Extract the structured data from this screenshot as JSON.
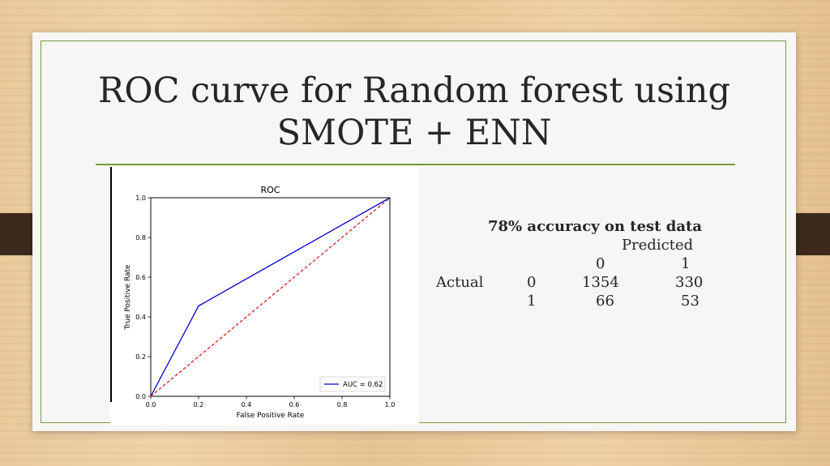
{
  "slide": {
    "title_line1": "ROC curve for Random forest using",
    "title_line2": "SMOTE + ENN"
  },
  "stats": {
    "accuracy_text": "78% accuracy on test data",
    "predicted_label": "Predicted",
    "actual_label": "Actual",
    "pred_classes": [
      "0",
      "1"
    ],
    "rows": [
      {
        "class": "0",
        "values": [
          "1354",
          "330"
        ]
      },
      {
        "class": "1",
        "values": [
          "66",
          "53"
        ]
      }
    ]
  },
  "chart_data": {
    "type": "line",
    "title": "ROC",
    "xlabel": "False Positive Rate",
    "ylabel": "True Positive Rate",
    "xlim": [
      0.0,
      1.0
    ],
    "ylim": [
      0.0,
      1.0
    ],
    "xticks": [
      "0.0",
      "0.2",
      "0.4",
      "0.6",
      "0.8",
      "1.0"
    ],
    "yticks": [
      "0.0",
      "0.2",
      "0.4",
      "0.6",
      "0.8",
      "1.0"
    ],
    "grid": false,
    "legend_position": "lower-right",
    "series": [
      {
        "name": "AUC = 0.62",
        "color": "#0000cc",
        "style": "solid",
        "x": [
          0.0,
          0.2,
          1.0
        ],
        "y": [
          0.0,
          0.455,
          1.0
        ]
      },
      {
        "color": "#dd2222",
        "style": "dashed",
        "x": [
          0.0,
          1.0
        ],
        "y": [
          0.0,
          1.0
        ]
      }
    ]
  },
  "colors": {
    "accent_green": "#7b9a3c",
    "strap_brown": "#3d2a1c",
    "roc_blue": "#0000cc",
    "diag_red": "#dd2222"
  }
}
